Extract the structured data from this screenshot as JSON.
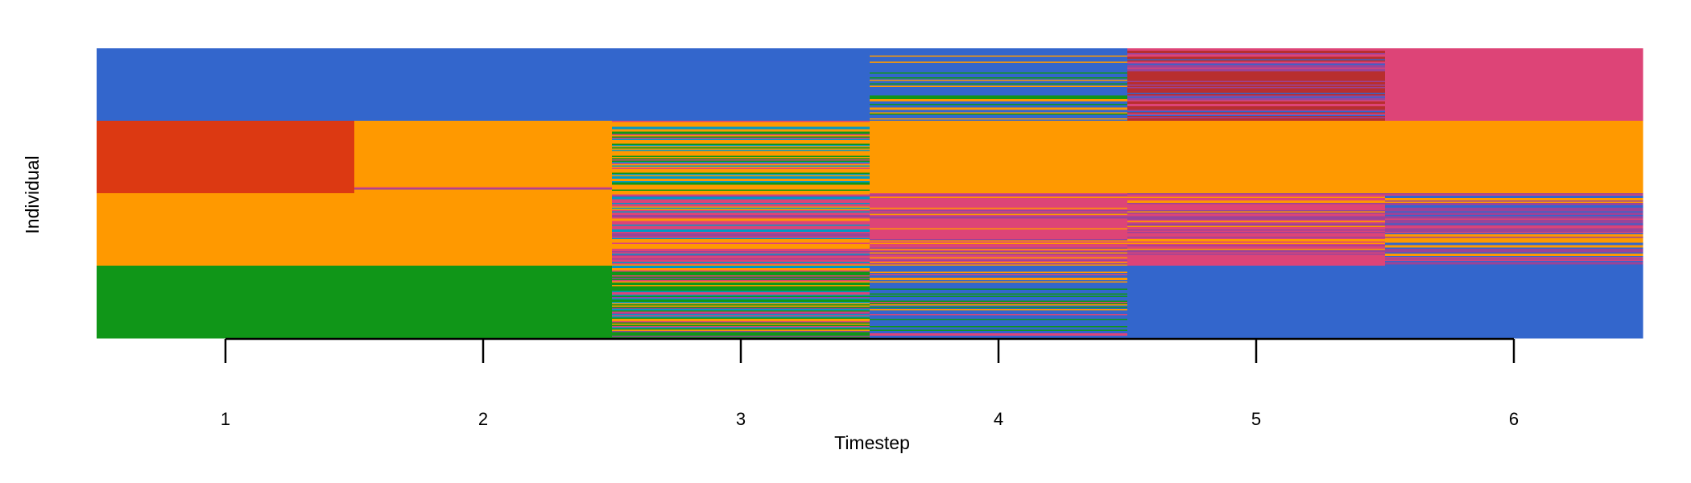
{
  "chart_data": {
    "type": "heatmap",
    "title": "",
    "xlabel": "Timestep",
    "ylabel": "Individual",
    "x": [
      1,
      2,
      3,
      4,
      5,
      6
    ],
    "xlim": [
      0.5,
      6.5
    ],
    "groups": 4,
    "grid": false,
    "legend": "none",
    "palette": {
      "blue": "#3366cc",
      "red": "#dc3912",
      "orange": "#ff9900",
      "green": "#109618",
      "teal": "#0099c6",
      "pink": "#dd4477",
      "crimson": "#b82e2e",
      "purple": "#994499"
    },
    "cells": [
      [
        {
          "base": "blue",
          "stripes": []
        },
        {
          "base": "blue",
          "stripes": []
        },
        {
          "base": "blue",
          "stripes": []
        },
        {
          "base": "blue",
          "stripes": [
            "green",
            "orange"
          ],
          "density": 0.25
        },
        {
          "base": "crimson",
          "stripes": [
            "pink",
            "purple",
            "blue"
          ],
          "density": 0.5
        },
        {
          "base": "pink",
          "stripes": []
        }
      ],
      [
        {
          "base": "red",
          "stripes": []
        },
        {
          "base": "orange",
          "stripes": [
            "purple",
            "pink"
          ],
          "density": 0.08
        },
        {
          "base": "orange",
          "stripes": [
            "teal",
            "green",
            "pink"
          ],
          "density": 0.55
        },
        {
          "base": "orange",
          "stripes": []
        },
        {
          "base": "orange",
          "stripes": []
        },
        {
          "base": "orange",
          "stripes": []
        }
      ],
      [
        {
          "base": "orange",
          "stripes": []
        },
        {
          "base": "orange",
          "stripes": []
        },
        {
          "base": "pink",
          "stripes": [
            "orange",
            "purple",
            "teal"
          ],
          "density": 0.5
        },
        {
          "base": "pink",
          "stripes": [
            "orange",
            "purple"
          ],
          "density": 0.45
        },
        {
          "base": "pink",
          "stripes": [
            "orange",
            "purple"
          ],
          "density": 0.45
        },
        {
          "base": "purple",
          "stripes": [
            "pink",
            "orange",
            "blue"
          ],
          "density": 0.55
        }
      ],
      [
        {
          "base": "green",
          "stripes": []
        },
        {
          "base": "green",
          "stripes": []
        },
        {
          "base": "green",
          "stripes": [
            "orange",
            "teal",
            "purple",
            "pink"
          ],
          "density": 0.45
        },
        {
          "base": "blue",
          "stripes": [
            "orange",
            "pink",
            "green"
          ],
          "density": 0.5
        },
        {
          "base": "blue",
          "stripes": []
        },
        {
          "base": "blue",
          "stripes": []
        }
      ]
    ]
  }
}
